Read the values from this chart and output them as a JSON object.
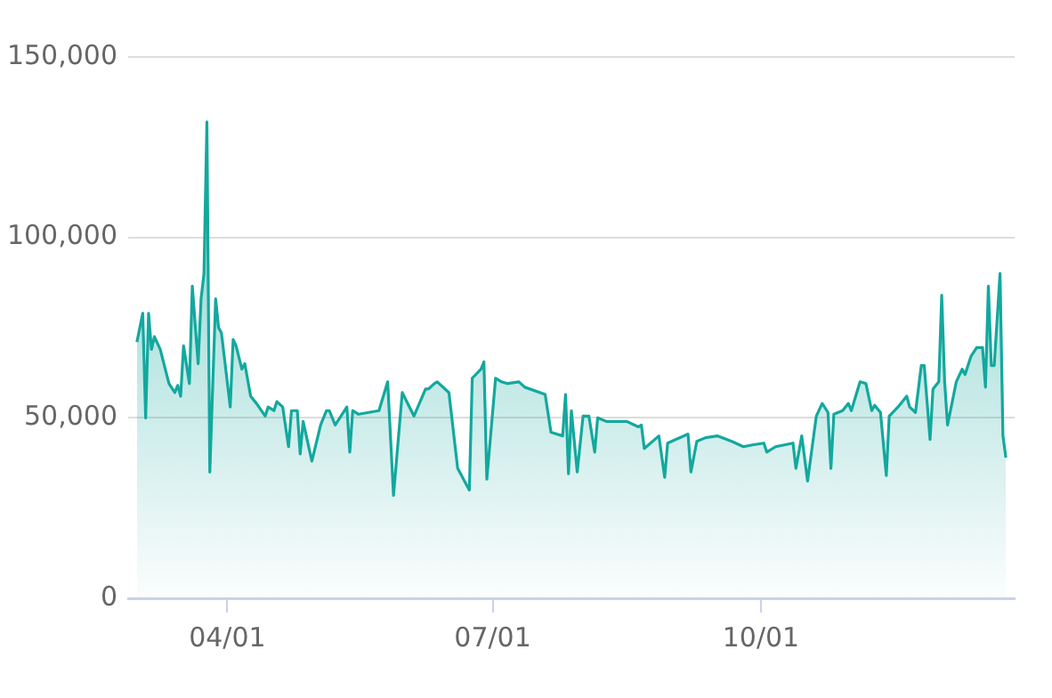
{
  "chart_data": {
    "type": "area",
    "xlim": [
      "--02-26",
      "--12-27"
    ],
    "xticks": [
      {
        "value": "--04-01",
        "label": "04/01"
      },
      {
        "value": "--07-01",
        "label": "07/01"
      },
      {
        "value": "--10-01",
        "label": "10/01"
      }
    ],
    "ylim": [
      0,
      150000
    ],
    "yticks": [
      {
        "value": 0,
        "label": "0"
      },
      {
        "value": 50000,
        "label": "50,000"
      },
      {
        "value": 100000,
        "label": "100,000"
      },
      {
        "value": 150000,
        "label": "150,000"
      }
    ],
    "grid": "y",
    "legend": false,
    "series": [
      {
        "color": "#13a89e",
        "x": [
          "--03-01",
          "--03-03",
          "--03-04",
          "--03-05",
          "--03-06",
          "--03-07",
          "--03-09",
          "--03-12",
          "--03-14",
          "--03-15",
          "--03-16",
          "--03-17",
          "--03-19",
          "--03-20",
          "--03-22",
          "--03-23",
          "--03-24",
          "--03-25",
          "--03-26",
          "--03-28",
          "--03-29",
          "--03-30",
          "--04-02",
          "--04-03",
          "--04-04",
          "--04-06",
          "--04-07",
          "--04-09",
          "--04-11",
          "--04-14",
          "--04-15",
          "--04-17",
          "--04-18",
          "--04-20",
          "--04-22",
          "--04-23",
          "--04-25",
          "--04-26",
          "--04-27",
          "--04-30",
          "--05-03",
          "--05-05",
          "--05-06",
          "--05-08",
          "--05-12",
          "--05-13",
          "--05-14",
          "--05-16",
          "--05-23",
          "--05-26",
          "--05-28",
          "--05-31",
          "--06-04",
          "--06-08",
          "--06-09",
          "--06-11",
          "--06-12",
          "--06-16",
          "--06-19",
          "--06-23",
          "--06-24",
          "--06-27",
          "--06-28",
          "--06-29",
          "--07-02",
          "--07-04",
          "--07-06",
          "--07-10",
          "--07-12",
          "--07-19",
          "--07-21",
          "--07-25",
          "--07-26",
          "--07-27",
          "--07-28",
          "--07-30",
          "--08-01",
          "--08-03",
          "--08-05",
          "--08-06",
          "--08-09",
          "--08-16",
          "--08-20",
          "--08-21",
          "--08-22",
          "--08-27",
          "--08-29",
          "--08-30",
          "--09-06",
          "--09-07",
          "--09-09",
          "--09-12",
          "--09-16",
          "--09-21",
          "--09-25",
          "--09-28",
          "--10-02",
          "--10-03",
          "--10-06",
          "--10-12",
          "--10-13",
          "--10-15",
          "--10-17",
          "--10-20",
          "--10-22",
          "--10-24",
          "--10-25",
          "--10-26",
          "--10-29",
          "--10-31",
          "--11-01",
          "--11-04",
          "--11-06",
          "--11-08",
          "--11-09",
          "--11-11",
          "--11-13",
          "--11-14",
          "--11-17",
          "--11-20",
          "--11-21",
          "--11-23",
          "--11-25",
          "--11-26",
          "--11-28",
          "--11-29",
          "--12-01",
          "--12-02",
          "--12-03",
          "--12-04",
          "--12-07",
          "--12-09",
          "--12-10",
          "--12-12",
          "--12-14",
          "--12-16",
          "--12-17",
          "--12-18",
          "--12-19",
          "--12-20",
          "--12-22",
          "--12-23",
          "--12-24"
        ],
        "values": [
          71000,
          79000,
          50000,
          79000,
          69000,
          72500,
          69000,
          59500,
          57000,
          59000,
          56000,
          70000,
          59500,
          86500,
          65000,
          83000,
          90000,
          132000,
          35000,
          83000,
          75000,
          73500,
          53000,
          71700,
          70000,
          63500,
          65000,
          56000,
          54000,
          50500,
          53000,
          52000,
          54500,
          53000,
          42000,
          52000,
          52000,
          40000,
          49000,
          38000,
          48000,
          52000,
          52000,
          48000,
          53000,
          40500,
          52000,
          51000,
          52000,
          60000,
          28500,
          57000,
          50500,
          58000,
          58000,
          59500,
          60000,
          57000,
          36000,
          30000,
          61000,
          63500,
          65500,
          33000,
          61000,
          60000,
          59500,
          60000,
          58500,
          56500,
          46000,
          45000,
          56500,
          34500,
          52000,
          35000,
          50500,
          50500,
          40500,
          50000,
          49000,
          49000,
          47500,
          48000,
          41500,
          45000,
          33500,
          43000,
          45500,
          35000,
          43500,
          44500,
          45000,
          43500,
          42000,
          42500,
          43000,
          40500,
          42000,
          43000,
          36000,
          45000,
          32500,
          50500,
          54000,
          51500,
          36000,
          51000,
          52000,
          54000,
          52000,
          60000,
          59500,
          52000,
          53500,
          51500,
          34000,
          50500,
          53000,
          56000,
          53000,
          51500,
          64500,
          64500,
          44000,
          58000,
          60000,
          84000,
          60000,
          48000,
          60000,
          63500,
          62000,
          67000,
          69500,
          69500,
          58500,
          86500,
          64500,
          64500,
          90000,
          45000,
          39000
        ]
      }
    ]
  }
}
